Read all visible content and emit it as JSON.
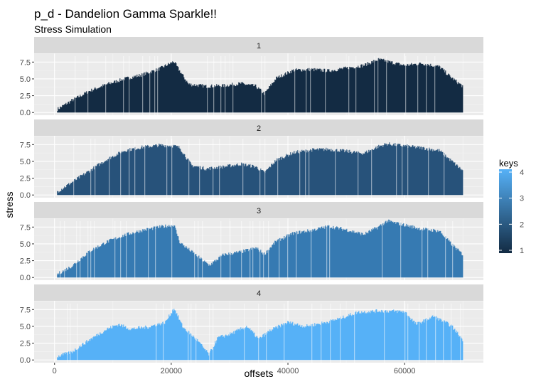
{
  "chart_data": {
    "type": "area",
    "title": "p_d - Dandelion Gamma Sparkle!!",
    "subtitle": "Stress Simulation",
    "xlabel": "offsets",
    "ylabel": "stress",
    "x_ticks": [
      0,
      20000,
      40000,
      60000
    ],
    "x_tick_labels": [
      "0",
      "20000",
      "40000",
      "60000"
    ],
    "y_ticks": [
      0,
      2.5,
      5,
      7.5
    ],
    "y_tick_labels": [
      "0.0",
      "2.5",
      "5.0",
      "7.5"
    ],
    "xlim": [
      -3500,
      73500
    ],
    "ylim": [
      -0.4,
      8.8
    ],
    "grid": true,
    "facet_by": "keys",
    "legend": {
      "title": "keys",
      "position": "right",
      "type": "colorbar",
      "labels": [
        "1",
        "2",
        "3",
        "4"
      ],
      "low_color": "#132b43",
      "high_color": "#56b1f7"
    },
    "panels": [
      {
        "strip": "1",
        "color": "#132b43",
        "x": [
          500,
          3000,
          6000,
          9000,
          12000,
          15000,
          18000,
          20500,
          21000,
          23000,
          26000,
          29000,
          32000,
          34500,
          36000,
          38000,
          41000,
          44000,
          47000,
          50000,
          53000,
          55500,
          57000,
          60000,
          63000,
          66000,
          68000,
          70000
        ],
        "y": [
          0.5,
          1.8,
          3.2,
          4.2,
          5.0,
          5.6,
          6.5,
          7.6,
          6.8,
          4.2,
          3.9,
          4.0,
          4.3,
          3.9,
          2.8,
          5.1,
          6.3,
          6.4,
          6.2,
          6.6,
          7.0,
          7.9,
          7.6,
          7.0,
          7.3,
          6.8,
          5.2,
          3.9
        ]
      },
      {
        "strip": "2",
        "color": "#27527a",
        "x": [
          500,
          3000,
          6000,
          9000,
          12000,
          15000,
          18000,
          20500,
          21500,
          23500,
          26000,
          29000,
          32000,
          34500,
          36000,
          38000,
          41000,
          44000,
          47000,
          50000,
          53000,
          55500,
          57000,
          60000,
          63000,
          66000,
          68000,
          70000
        ],
        "y": [
          0.5,
          1.9,
          3.6,
          5.3,
          6.6,
          7.1,
          7.4,
          7.3,
          7.0,
          4.4,
          3.9,
          4.2,
          4.6,
          4.2,
          3.3,
          5.2,
          6.3,
          6.7,
          6.8,
          6.5,
          6.2,
          7.2,
          7.6,
          7.3,
          7.0,
          6.6,
          5.1,
          3.6
        ]
      },
      {
        "strip": "3",
        "color": "#367ab2",
        "x": [
          500,
          3000,
          6000,
          9000,
          12000,
          15000,
          18000,
          20500,
          21500,
          24000,
          26500,
          29000,
          32000,
          34500,
          36000,
          38000,
          41000,
          44000,
          47000,
          50000,
          53000,
          55500,
          57000,
          60000,
          63000,
          66000,
          68000,
          70000
        ],
        "y": [
          0.5,
          1.7,
          3.9,
          5.3,
          6.3,
          7.0,
          7.5,
          7.8,
          5.2,
          3.5,
          1.8,
          3.4,
          3.8,
          4.4,
          3.5,
          5.4,
          6.6,
          7.0,
          7.6,
          7.1,
          6.4,
          7.5,
          8.4,
          7.8,
          7.2,
          6.9,
          5.0,
          3.4
        ]
      },
      {
        "strip": "4",
        "color": "#56b1f7",
        "x": [
          500,
          3000,
          6000,
          9000,
          11000,
          13000,
          16000,
          19000,
          20500,
          22000,
          24500,
          26500,
          28000,
          30000,
          33000,
          35000,
          37000,
          40000,
          43000,
          46000,
          49000,
          52000,
          56000,
          60000,
          62000,
          65000,
          68000,
          70000
        ],
        "y": [
          0.5,
          1.2,
          3.0,
          4.6,
          5.3,
          4.6,
          4.9,
          5.6,
          7.7,
          4.9,
          2.9,
          0.8,
          3.3,
          3.8,
          5.0,
          3.1,
          4.4,
          5.6,
          5.0,
          5.5,
          6.2,
          7.1,
          7.3,
          7.2,
          5.3,
          6.5,
          5.1,
          3.0
        ]
      }
    ]
  }
}
